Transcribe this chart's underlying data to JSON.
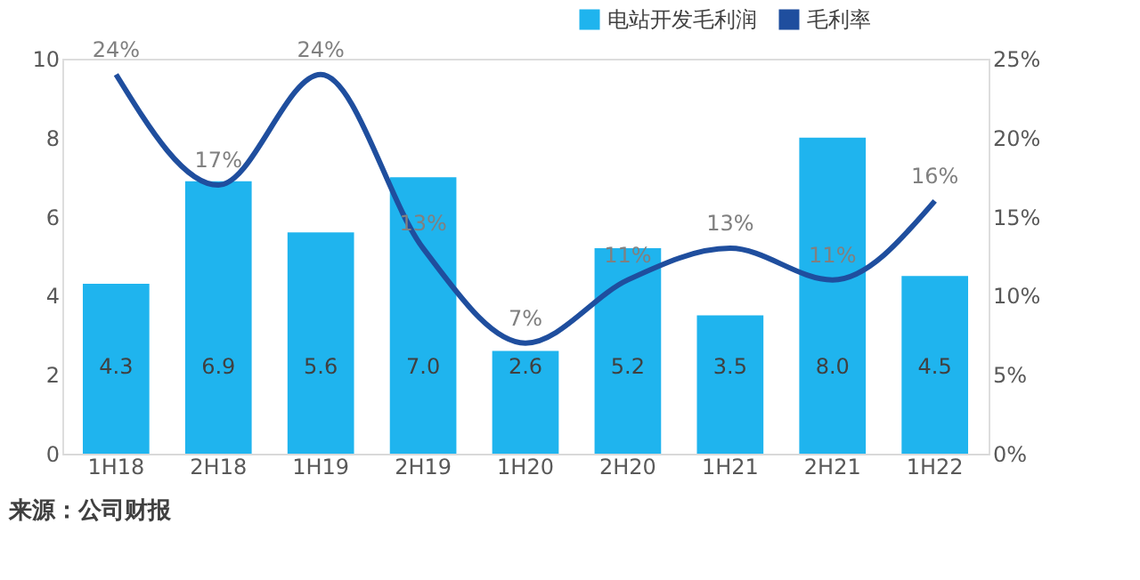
{
  "chart_data": {
    "type": "bar",
    "categories": [
      "1H18",
      "2H18",
      "1H19",
      "2H19",
      "1H20",
      "2H20",
      "1H21",
      "2H21",
      "1H22"
    ],
    "series": [
      {
        "name": "电站开发毛利润",
        "color": "#1fb4ee",
        "values": [
          4.3,
          6.9,
          5.6,
          7.0,
          2.6,
          5.2,
          3.5,
          8.0,
          4.5
        ],
        "value_labels": [
          "4.3",
          "6.9",
          "5.6",
          "7.0",
          "2.6",
          "5.2",
          "3.5",
          "8.0",
          "4.5"
        ]
      },
      {
        "name": "毛利率",
        "type": "line",
        "axis": "y2",
        "color": "#1f4e9e",
        "values": [
          24,
          17,
          24,
          13,
          7,
          11,
          13,
          11,
          16
        ],
        "value_labels": [
          "24%",
          "17%",
          "24%",
          "13%",
          "7%",
          "11%",
          "13%",
          "11%",
          "16%"
        ]
      }
    ],
    "ylim": [
      0,
      10
    ],
    "yticks": [
      0,
      2,
      4,
      6,
      8,
      10
    ],
    "y2lim": [
      0,
      25
    ],
    "y2ticks": [
      {
        "value": 0,
        "label": "0%"
      },
      {
        "value": 5,
        "label": "5%"
      },
      {
        "value": 10,
        "label": "10%"
      },
      {
        "value": 15,
        "label": "15%"
      },
      {
        "value": 20,
        "label": "20%"
      },
      {
        "value": 25,
        "label": "25%"
      }
    ],
    "legend": "top right",
    "grid": false,
    "annotations": [
      "来源：公司财报"
    ]
  }
}
